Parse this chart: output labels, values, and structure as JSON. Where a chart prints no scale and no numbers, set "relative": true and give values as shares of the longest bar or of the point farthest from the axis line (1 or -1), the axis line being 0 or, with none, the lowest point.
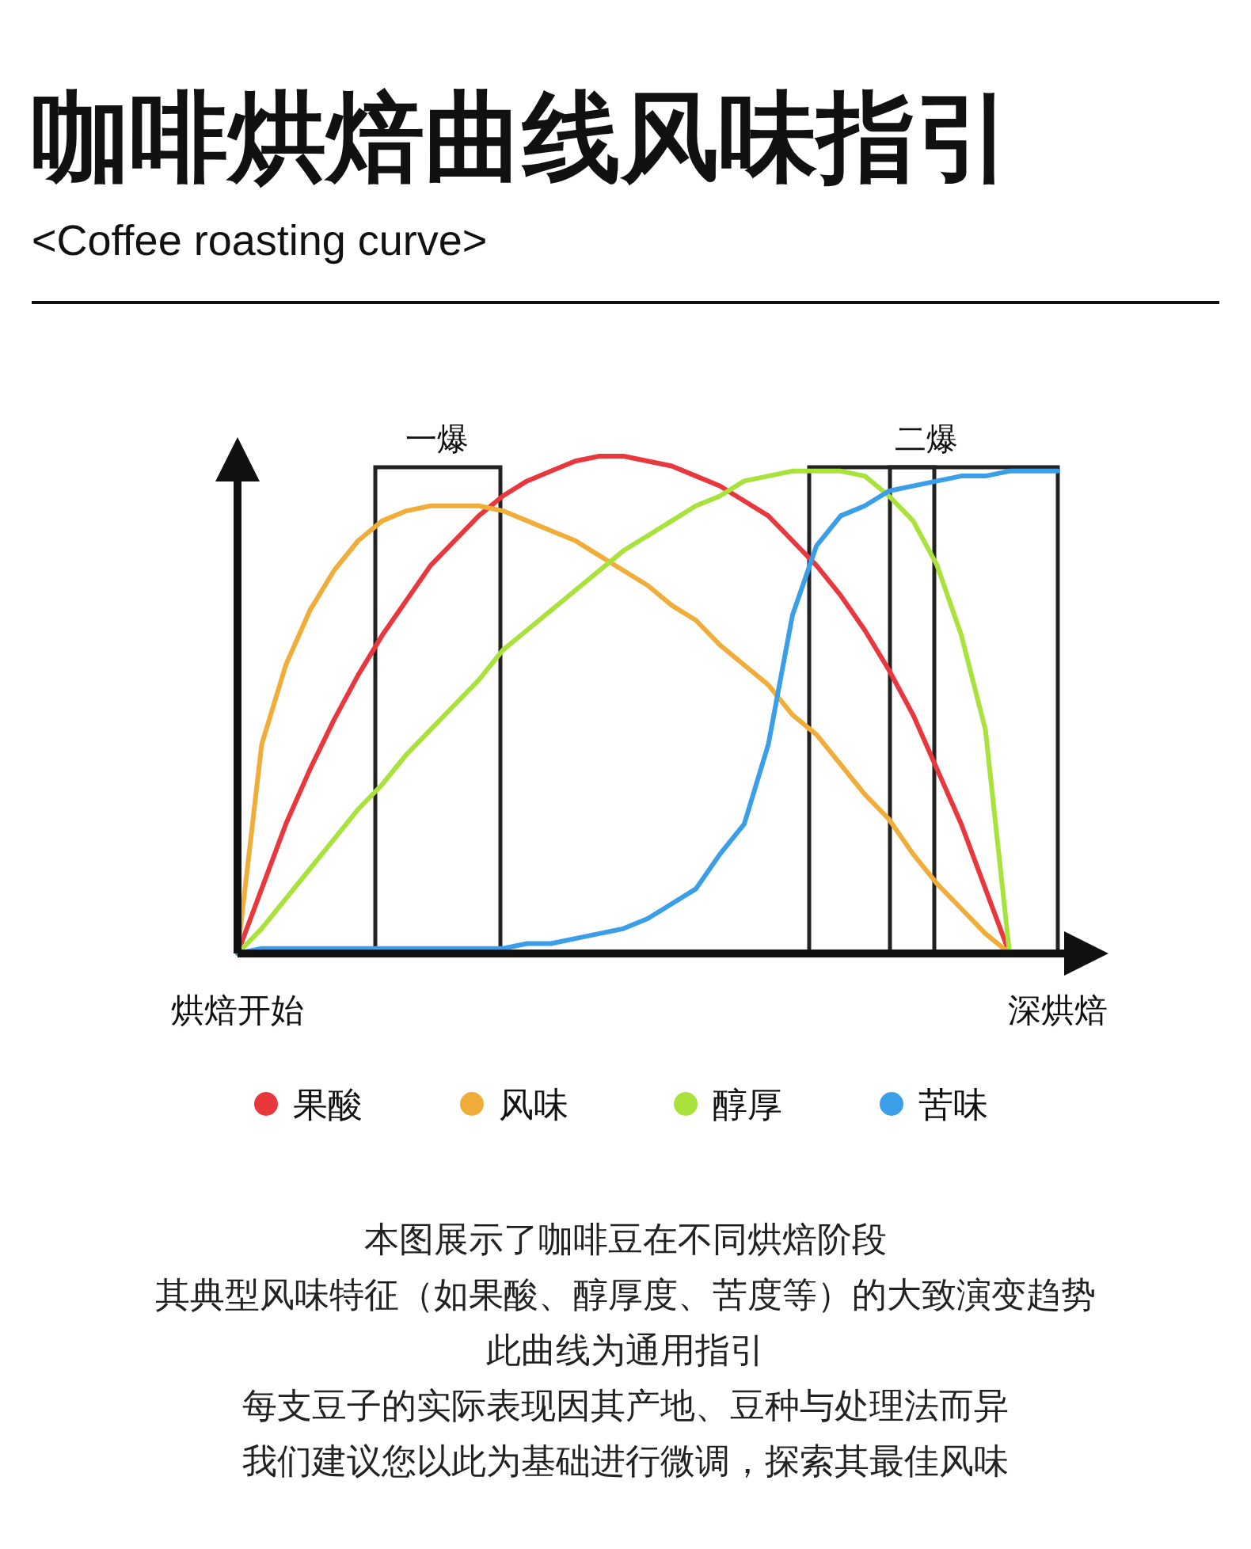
{
  "chart_data": {
    "type": "line",
    "title": "咖啡烘焙曲线风味指引",
    "subtitle": "<Coffee roasting curve>",
    "relative": true,
    "legend": "bottom",
    "categories": [
      "烘焙开始",
      null,
      null,
      null,
      null,
      null,
      null,
      null,
      null,
      null,
      null,
      null,
      null,
      null,
      null,
      null,
      null,
      null,
      null,
      null,
      null,
      null,
      null,
      null,
      null,
      null,
      null,
      null,
      null,
      null,
      null,
      null,
      null,
      null,
      "深烘焙"
    ],
    "series": [
      {
        "name": "果酸",
        "color": "#e8383d",
        "values": [
          0,
          0.13,
          0.26,
          0.37,
          0.47,
          0.56,
          0.64,
          0.71,
          0.78,
          0.83,
          0.88,
          0.92,
          0.95,
          0.97,
          0.99,
          1,
          1,
          0.99,
          0.98,
          0.96,
          0.94,
          0.91,
          0.88,
          0.83,
          0.78,
          0.72,
          0.65,
          0.57,
          0.48,
          0.37,
          0.26,
          0.13,
          0,
          null,
          null
        ]
      },
      {
        "name": "风味",
        "color": "#f0ad3a",
        "values": [
          0,
          0.42,
          0.58,
          0.69,
          0.77,
          0.83,
          0.87,
          0.89,
          0.9,
          0.9,
          0.9,
          0.89,
          0.87,
          0.85,
          0.83,
          0.8,
          0.77,
          0.74,
          0.7,
          0.67,
          0.62,
          0.58,
          0.54,
          0.48,
          0.44,
          0.38,
          0.32,
          0.27,
          0.2,
          0.14,
          0.09,
          0.04,
          0,
          null,
          null
        ]
      },
      {
        "name": "醇厚",
        "color": "#a8e23a",
        "values": [
          0,
          0.05,
          0.11,
          0.17,
          0.23,
          0.29,
          0.34,
          0.4,
          0.45,
          0.5,
          0.55,
          0.61,
          0.65,
          0.69,
          0.73,
          0.77,
          0.81,
          0.84,
          0.87,
          0.9,
          0.92,
          0.95,
          0.96,
          0.97,
          0.97,
          0.97,
          0.96,
          0.92,
          0.87,
          0.78,
          0.64,
          0.45,
          0,
          null,
          null
        ]
      },
      {
        "name": "苦味",
        "color": "#3a9ee8",
        "values": [
          0,
          0.01,
          0.01,
          0.01,
          0.01,
          0.01,
          0.01,
          0.01,
          0.01,
          0.01,
          0.01,
          0.01,
          0.02,
          0.02,
          0.03,
          0.04,
          0.05,
          0.07,
          0.1,
          0.13,
          0.2,
          0.26,
          0.42,
          0.68,
          0.82,
          0.88,
          0.9,
          0.93,
          0.94,
          0.95,
          0.96,
          0.96,
          0.97,
          0.97,
          0.97
        ]
      }
    ],
    "annotations": [
      "一爆",
      "二爆",
      "本图展示了咖啡豆在不同烘焙阶段",
      "其典型风味特征（如果酸、醇厚度、苦度等）的大致演变趋势",
      "此曲线为通用指引",
      "每支豆子的实际表现因其产地、豆种与处理法而异",
      "我们建议您以此为基础进行微调，探索其最佳风味"
    ]
  }
}
